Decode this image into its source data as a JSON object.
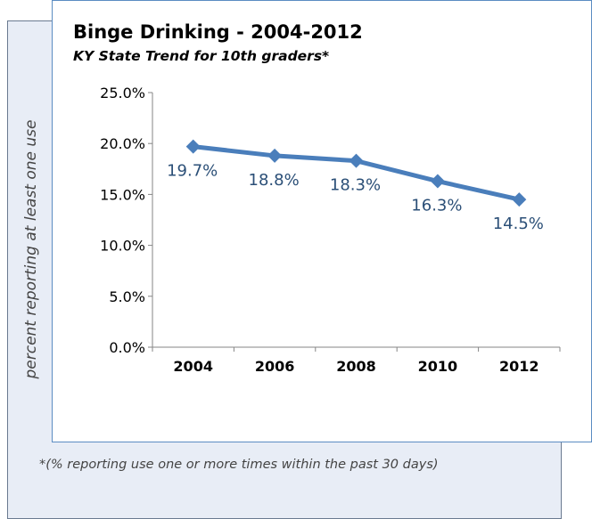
{
  "chart_data": {
    "type": "line",
    "title": "Binge Drinking - 2004-2012",
    "subtitle": "KY State Trend for 10th graders*",
    "ylabel": "percent reporting at least one use",
    "xlabel": "",
    "categories": [
      "2004",
      "2006",
      "2008",
      "2010",
      "2012"
    ],
    "series": [
      {
        "values": [
          19.7,
          18.8,
          18.3,
          16.3,
          14.5
        ],
        "data_labels": [
          "19.7%",
          "18.8%",
          "18.3%",
          "16.3%",
          "14.5%"
        ]
      }
    ],
    "y_ticks": [
      "0.0%",
      "5.0%",
      "10.0%",
      "15.0%",
      "20.0%",
      "25.0%"
    ],
    "ylim": [
      0,
      25
    ],
    "grid": false,
    "legend": "none",
    "line_color": "#4a7ebb",
    "marker": "diamond"
  },
  "footnote": "*(% reporting use one or more times within the past 30 days)"
}
